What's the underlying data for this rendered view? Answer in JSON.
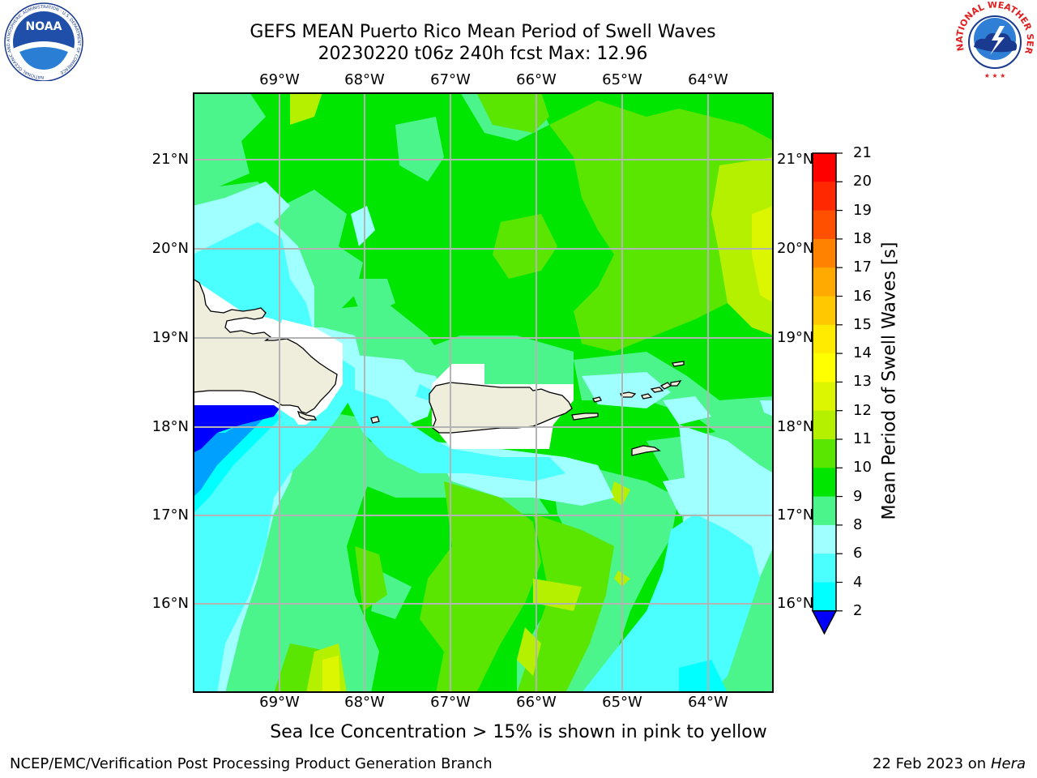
{
  "title_line1": "GEFS MEAN Puerto Rico Mean Period of Swell Waves",
  "title_line2": "20230220 t06z 240h fcst   Max: 12.96",
  "lon_ticks": [
    "69°W",
    "68°W",
    "67°W",
    "66°W",
    "65°W",
    "64°W"
  ],
  "lat_ticks": [
    "21°N",
    "20°N",
    "19°N",
    "18°N",
    "17°N",
    "16°N"
  ],
  "colorbar": {
    "title": "Mean Period of Swell Waves [s]",
    "labels": [
      "21",
      "20",
      "19",
      "18",
      "17",
      "16",
      "15",
      "14",
      "13",
      "12",
      "11",
      "10",
      "9",
      "8",
      "6",
      "4",
      "2"
    ],
    "colors": [
      "#ff0000",
      "#ff2800",
      "#ff5000",
      "#ff8200",
      "#ffaa00",
      "#ffc800",
      "#ffeb00",
      "#ffff00",
      "#dcf500",
      "#b4f000",
      "#5ae600",
      "#00e600",
      "#4bf58c",
      "#a0ffff",
      "#4bffff",
      "#00ffff",
      "#00a0ff"
    ],
    "under_color": "#0000ff"
  },
  "colors": {
    "land": "#efeddc",
    "dominant_field": "#00e600"
  },
  "note": "Sea Ice Concentration > 15% is shown in pink to yellow",
  "footer": {
    "left": "NCEP/EMC/Verification Post Processing Product Generation Branch",
    "date": "22 Feb 2023 on",
    "host": "Hera"
  },
  "logos": {
    "left": "NOAA",
    "left_ring": "NATIONAL OCEANIC AND ATMOSPHERIC ADMINISTRATION · U.S. DEPARTMENT OF COMMERCE",
    "right_ring": "NATIONAL WEATHER SERVICE"
  }
}
